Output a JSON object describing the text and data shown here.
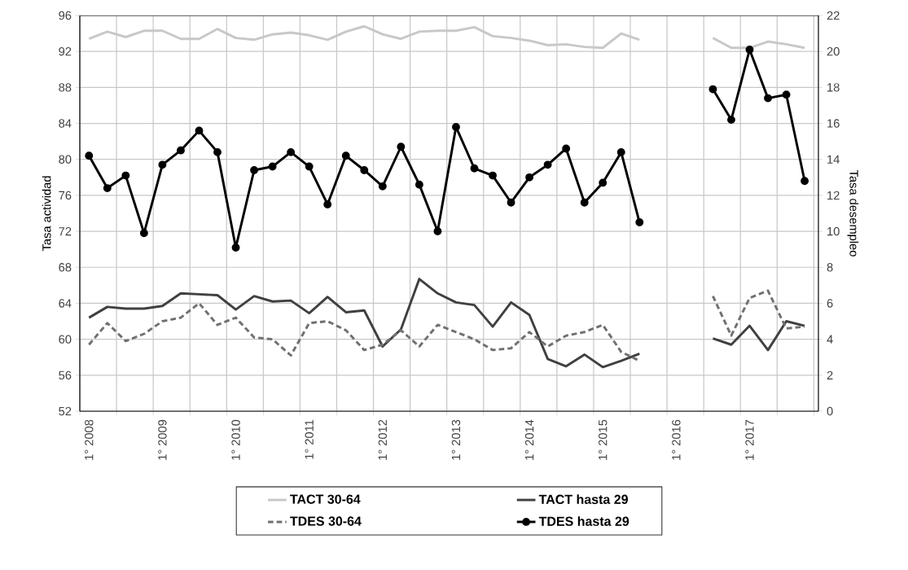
{
  "chart_data": {
    "type": "line",
    "ylabel": "Tasa actividad",
    "y2label": "Tasa desempleo",
    "categories": [
      "1° 2008",
      null,
      null,
      null,
      "1° 2009",
      null,
      null,
      null,
      "1° 2010",
      null,
      null,
      null,
      "1° 2011",
      null,
      null,
      null,
      "1° 2012",
      null,
      null,
      null,
      "1° 2013",
      null,
      null,
      null,
      "1° 2014",
      null,
      null,
      null,
      "1° 2015",
      null,
      null,
      null,
      "1° 2016",
      null,
      null,
      null,
      "1° 2017",
      null,
      null,
      null
    ],
    "ylim": [
      52,
      96
    ],
    "yticks": [
      52,
      56,
      60,
      64,
      68,
      72,
      76,
      80,
      84,
      88,
      92,
      96
    ],
    "y2lim": [
      0,
      22
    ],
    "y2ticks": [
      0,
      2,
      4,
      6,
      8,
      10,
      12,
      14,
      16,
      18,
      20,
      22
    ],
    "grid": true,
    "legend": "bottom",
    "series": [
      {
        "name": "TACT 30-64",
        "color": "#c8c8c8",
        "axis": "y",
        "line_style": "solid",
        "marker": "none",
        "values": [
          93.4,
          94.2,
          93.6,
          94.3,
          94.3,
          93.4,
          93.4,
          94.5,
          93.5,
          93.3,
          93.9,
          94.1,
          93.8,
          93.3,
          94.2,
          94.8,
          93.9,
          93.4,
          94.2,
          94.3,
          94.3,
          94.7,
          93.7,
          93.5,
          93.2,
          92.7,
          92.8,
          92.5,
          92.4,
          94.0,
          93.3,
          null,
          null,
          null,
          93.5,
          92.4,
          92.4,
          93.1,
          92.8,
          92.4
        ]
      },
      {
        "name": "TACT hasta 29",
        "color": "#404040",
        "axis": "y",
        "line_style": "solid",
        "marker": "none",
        "values": [
          62.4,
          63.6,
          63.4,
          63.4,
          63.7,
          65.1,
          65.0,
          64.9,
          63.3,
          64.8,
          64.2,
          64.3,
          62.9,
          64.7,
          63.0,
          63.2,
          59.2,
          61.1,
          66.7,
          65.1,
          64.1,
          63.8,
          61.4,
          64.1,
          62.7,
          57.8,
          57.0,
          58.3,
          56.9,
          57.6,
          58.4,
          null,
          null,
          null,
          60.1,
          59.4,
          61.5,
          58.8,
          62.0,
          61.5
        ]
      },
      {
        "name": "TDES 30-64",
        "color": "#707070",
        "axis": "y2",
        "line_style": "dashed",
        "marker": "none",
        "values": [
          3.7,
          4.9,
          3.9,
          4.3,
          5.0,
          5.2,
          6.0,
          4.8,
          5.2,
          4.1,
          4.0,
          3.1,
          4.9,
          5.0,
          4.5,
          3.4,
          3.7,
          4.5,
          3.6,
          4.8,
          4.4,
          4.0,
          3.4,
          3.5,
          4.4,
          3.6,
          4.2,
          4.4,
          4.8,
          3.3,
          2.8,
          null,
          null,
          null,
          6.4,
          4.2,
          6.3,
          6.7,
          4.6,
          4.7
        ]
      },
      {
        "name": "TDES hasta 29",
        "color": "#000000",
        "axis": "y2",
        "line_style": "solid",
        "marker": "circle",
        "values": [
          14.2,
          12.4,
          13.1,
          9.9,
          13.7,
          14.5,
          15.6,
          14.4,
          9.1,
          13.4,
          13.6,
          14.4,
          13.6,
          11.5,
          14.2,
          13.4,
          12.5,
          14.7,
          12.6,
          10.0,
          15.8,
          13.5,
          13.1,
          11.6,
          13.0,
          13.7,
          14.6,
          11.6,
          12.7,
          14.4,
          10.5,
          null,
          null,
          null,
          17.9,
          16.2,
          20.1,
          17.4,
          17.6,
          12.8
        ]
      }
    ]
  }
}
